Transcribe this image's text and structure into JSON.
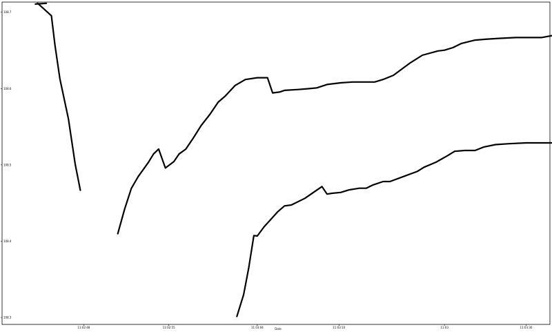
{
  "chart_data": {
    "type": "line",
    "title": "",
    "xlabel": "Date",
    "ylabel": "",
    "grid": false,
    "line_color": "#000000",
    "xlim": [
      -0.04,
      1.57
    ],
    "ylim": [
      108.291,
      108.7133
    ],
    "x_ticks": [
      {
        "value": 0.2,
        "label": "11:02:48"
      },
      {
        "value": 0.45,
        "label": "11:02:55"
      },
      {
        "value": 0.71,
        "label": "11:03:04"
      },
      {
        "value": 0.95,
        "label": "11:03:10"
      },
      {
        "value": 1.26,
        "label": "11:03"
      },
      {
        "value": 1.5,
        "label": "11:03:30"
      }
    ],
    "y_ticks": [
      {
        "value": 108.3,
        "label": "108.3"
      },
      {
        "value": 108.4,
        "label": "108.4"
      },
      {
        "value": 108.5,
        "label": "108.5"
      },
      {
        "value": 108.6,
        "label": "108.6"
      },
      {
        "value": 108.7,
        "label": "108.7"
      }
    ],
    "series": [
      {
        "points": [
          [
            0.0645,
            108.7118
          ],
          [
            0.105,
            108.6954
          ],
          [
            0.1155,
            108.6566
          ],
          [
            0.13,
            108.6127
          ],
          [
            0.155,
            108.5601
          ],
          [
            0.175,
            108.5009
          ],
          [
            0.19,
            108.4668
          ]
        ]
      },
      {
        "points": [
          [
            0.058,
            108.7107
          ],
          [
            0.09,
            108.7117
          ]
        ]
      },
      {
        "points": [
          [
            0.3,
            108.4098
          ],
          [
            0.32,
            108.4417
          ],
          [
            0.34,
            108.4693
          ],
          [
            0.36,
            108.4847
          ],
          [
            0.39,
            108.5033
          ],
          [
            0.405,
            108.5143
          ],
          [
            0.42,
            108.5208
          ],
          [
            0.44,
            108.4959
          ],
          [
            0.465,
            108.5043
          ],
          [
            0.48,
            108.5142
          ],
          [
            0.5,
            108.5207
          ],
          [
            0.52,
            108.5339
          ],
          [
            0.545,
            108.5515
          ],
          [
            0.57,
            108.5657
          ],
          [
            0.595,
            108.5822
          ],
          [
            0.615,
            108.5898
          ],
          [
            0.645,
            108.6041
          ],
          [
            0.675,
            108.6118
          ],
          [
            0.71,
            108.6142
          ],
          [
            0.725,
            108.6142
          ],
          [
            0.74,
            108.6142
          ],
          [
            0.755,
            108.5943
          ],
          [
            0.775,
            108.5954
          ],
          [
            0.79,
            108.5976
          ],
          [
            0.83,
            108.5987
          ],
          [
            0.86,
            108.5998
          ],
          [
            0.885,
            108.6009
          ],
          [
            0.915,
            108.6053
          ],
          [
            0.955,
            108.6075
          ],
          [
            0.99,
            108.6086
          ],
          [
            1.055,
            108.6086
          ],
          [
            1.08,
            108.6119
          ],
          [
            1.11,
            108.6174
          ],
          [
            1.16,
            108.6338
          ],
          [
            1.195,
            108.6437
          ],
          [
            1.24,
            108.6492
          ],
          [
            1.26,
            108.6503
          ],
          [
            1.285,
            108.6536
          ],
          [
            1.31,
            108.6591
          ],
          [
            1.35,
            108.6635
          ],
          [
            1.38,
            108.6646
          ],
          [
            1.42,
            108.6657
          ],
          [
            1.47,
            108.6668
          ],
          [
            1.505,
            108.6668
          ],
          [
            1.545,
            108.6668
          ],
          [
            1.585,
            108.6701
          ],
          [
            1.64,
            108.6734
          ]
        ]
      },
      {
        "points": [
          [
            0.65,
            108.3015
          ],
          [
            0.67,
            108.3301
          ],
          [
            0.685,
            108.3652
          ],
          [
            0.7,
            108.4074
          ],
          [
            0.71,
            108.4068
          ],
          [
            0.73,
            108.4189
          ],
          [
            0.75,
            108.4287
          ],
          [
            0.77,
            108.4386
          ],
          [
            0.79,
            108.4463
          ],
          [
            0.81,
            108.4474
          ],
          [
            0.85,
            108.4562
          ],
          [
            0.875,
            108.4639
          ],
          [
            0.9,
            108.4716
          ],
          [
            0.915,
            108.4617
          ],
          [
            0.93,
            108.4628
          ],
          [
            0.955,
            108.4639
          ],
          [
            0.98,
            108.4672
          ],
          [
            1.01,
            108.4694
          ],
          [
            1.03,
            108.4694
          ],
          [
            1.05,
            108.4738
          ],
          [
            1.08,
            108.4782
          ],
          [
            1.1,
            108.4782
          ],
          [
            1.14,
            108.4848
          ],
          [
            1.18,
            108.4914
          ],
          [
            1.2,
            108.4969
          ],
          [
            1.235,
            108.5035
          ],
          [
            1.27,
            108.5123
          ],
          [
            1.29,
            108.5178
          ],
          [
            1.32,
            108.5189
          ],
          [
            1.35,
            108.5189
          ],
          [
            1.375,
            108.5233
          ],
          [
            1.41,
            108.5266
          ],
          [
            1.45,
            108.5277
          ],
          [
            1.5,
            108.5288
          ],
          [
            1.545,
            108.5288
          ],
          [
            1.575,
            108.5288
          ],
          [
            1.61,
            108.5321
          ]
        ]
      }
    ]
  }
}
